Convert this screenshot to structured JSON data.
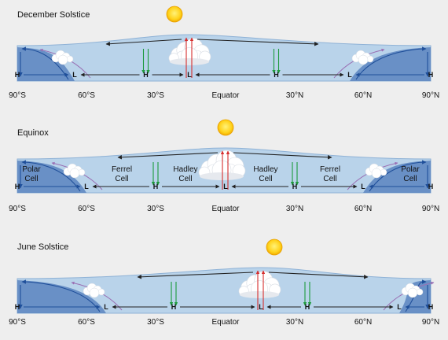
{
  "latitude_labels": [
    "90°S",
    "60°S",
    "30°S",
    "Equator",
    "30°N",
    "60°N",
    "90°N"
  ],
  "panels": [
    {
      "title": "December Solstice",
      "pressure": [
        "H",
        "L",
        "H",
        "L",
        "H",
        "L",
        "H"
      ],
      "cells": []
    },
    {
      "title": "Equinox",
      "pressure": [
        "H",
        "L",
        "H",
        "L",
        "H",
        "L",
        "H"
      ],
      "cells": [
        [
          "Polar",
          "Cell"
        ],
        [
          "Ferrel",
          "Cell"
        ],
        [
          "Hadley",
          "Cell"
        ],
        [
          "Hadley",
          "Cell"
        ],
        [
          "Ferrel",
          "Cell"
        ],
        [
          "Polar",
          "Cell"
        ]
      ]
    },
    {
      "title": "June Solstice",
      "pressure": [
        "H",
        "L",
        "H",
        "L",
        "H",
        "L",
        "H"
      ],
      "cells": []
    }
  ],
  "colors": {
    "sky": "#b9d3ea",
    "polar": "#5b84c0",
    "sun": "#ffd21a",
    "sinking_arrow": "#1d9a3c",
    "rising_arrow": "#d62e2e",
    "flow_arrow": "#222222",
    "surface_arrow": "#1f4f9a"
  }
}
